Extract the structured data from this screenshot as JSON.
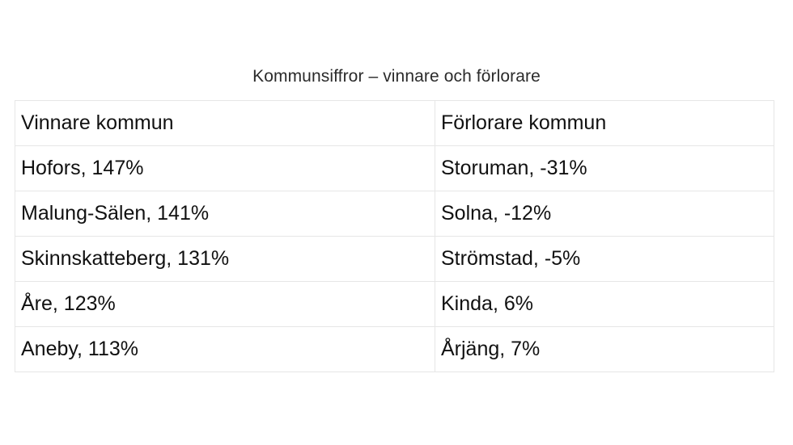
{
  "caption": "Kommunsiffror – vinnare och förlorare",
  "table": {
    "headers": [
      "Vinnare kommun",
      "Förlorare kommun"
    ],
    "rows": [
      [
        "Hofors, 147%",
        "Storuman, -31%"
      ],
      [
        "Malung-Sälen, 141%",
        "Solna, -12%"
      ],
      [
        "Skinnskatteberg, 131%",
        "Strömstad, -5%"
      ],
      [
        "Åre, 123%",
        "Kinda, 6%"
      ],
      [
        "Aneby, 113%",
        "Årjäng, 7%"
      ]
    ]
  }
}
